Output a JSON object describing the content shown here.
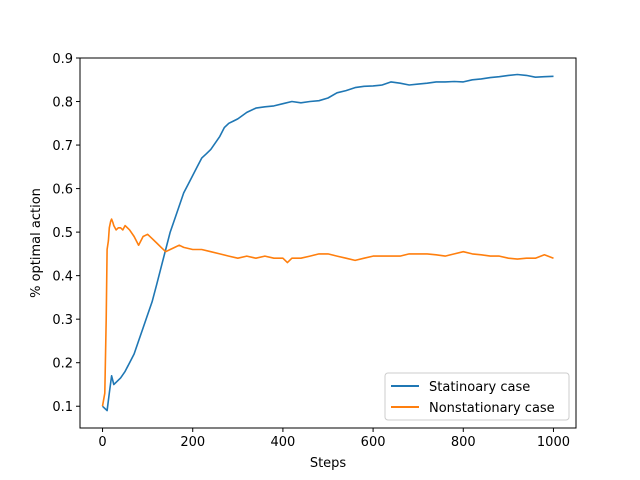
{
  "chart_data": {
    "type": "line",
    "title": "",
    "xlabel": "Steps",
    "ylabel": "% optimal action",
    "xlim": [
      -50,
      1050
    ],
    "ylim": [
      0.05,
      0.9
    ],
    "xticks": [
      0,
      200,
      400,
      600,
      800,
      1000
    ],
    "xtick_labels": [
      "0",
      "200",
      "400",
      "600",
      "800",
      "1000"
    ],
    "yticks": [
      0.1,
      0.2,
      0.3,
      0.4,
      0.5,
      0.6,
      0.7,
      0.8,
      0.9
    ],
    "ytick_labels": [
      "0.1",
      "0.2",
      "0.3",
      "0.4",
      "0.5",
      "0.6",
      "0.7",
      "0.8",
      "0.9"
    ],
    "grid": false,
    "legend_position": "lower-right",
    "series": [
      {
        "name": "Statinoary case",
        "color": "#1f77b4",
        "x": [
          0,
          5,
          10,
          15,
          20,
          25,
          30,
          40,
          50,
          60,
          70,
          80,
          90,
          100,
          110,
          120,
          130,
          140,
          150,
          160,
          170,
          180,
          190,
          200,
          210,
          220,
          230,
          240,
          250,
          260,
          270,
          280,
          290,
          300,
          320,
          340,
          360,
          380,
          400,
          420,
          440,
          460,
          480,
          500,
          520,
          540,
          560,
          580,
          600,
          620,
          640,
          660,
          680,
          700,
          720,
          740,
          760,
          780,
          800,
          820,
          840,
          860,
          880,
          900,
          920,
          940,
          960,
          980,
          1000
        ],
        "values": [
          0.1,
          0.095,
          0.09,
          0.13,
          0.17,
          0.15,
          0.155,
          0.165,
          0.18,
          0.2,
          0.22,
          0.25,
          0.28,
          0.31,
          0.34,
          0.38,
          0.42,
          0.46,
          0.5,
          0.53,
          0.56,
          0.59,
          0.61,
          0.63,
          0.65,
          0.67,
          0.68,
          0.69,
          0.705,
          0.72,
          0.74,
          0.75,
          0.755,
          0.76,
          0.775,
          0.785,
          0.788,
          0.79,
          0.795,
          0.8,
          0.797,
          0.8,
          0.802,
          0.808,
          0.82,
          0.825,
          0.832,
          0.835,
          0.836,
          0.838,
          0.845,
          0.842,
          0.838,
          0.84,
          0.842,
          0.845,
          0.845,
          0.846,
          0.845,
          0.85,
          0.852,
          0.855,
          0.857,
          0.86,
          0.862,
          0.86,
          0.856,
          0.857,
          0.858
        ]
      },
      {
        "name": "Nonstationary case",
        "color": "#ff7f0e",
        "x": [
          0,
          5,
          8,
          10,
          13,
          15,
          18,
          20,
          23,
          25,
          30,
          35,
          40,
          45,
          50,
          60,
          70,
          80,
          90,
          100,
          110,
          120,
          130,
          140,
          150,
          160,
          170,
          180,
          200,
          220,
          240,
          260,
          280,
          300,
          320,
          340,
          360,
          380,
          400,
          410,
          420,
          440,
          460,
          480,
          500,
          520,
          540,
          560,
          580,
          600,
          620,
          640,
          660,
          680,
          700,
          720,
          740,
          760,
          780,
          800,
          820,
          840,
          860,
          880,
          900,
          920,
          940,
          960,
          980,
          1000
        ],
        "values": [
          0.1,
          0.13,
          0.3,
          0.46,
          0.48,
          0.51,
          0.525,
          0.53,
          0.522,
          0.515,
          0.505,
          0.51,
          0.51,
          0.505,
          0.515,
          0.505,
          0.49,
          0.47,
          0.49,
          0.495,
          0.485,
          0.475,
          0.465,
          0.455,
          0.46,
          0.465,
          0.47,
          0.465,
          0.46,
          0.46,
          0.455,
          0.45,
          0.445,
          0.44,
          0.445,
          0.44,
          0.445,
          0.44,
          0.44,
          0.43,
          0.44,
          0.44,
          0.445,
          0.45,
          0.45,
          0.445,
          0.44,
          0.435,
          0.44,
          0.445,
          0.445,
          0.445,
          0.445,
          0.45,
          0.45,
          0.45,
          0.448,
          0.445,
          0.45,
          0.455,
          0.45,
          0.448,
          0.445,
          0.445,
          0.44,
          0.438,
          0.44,
          0.44,
          0.448,
          0.44
        ]
      }
    ]
  }
}
